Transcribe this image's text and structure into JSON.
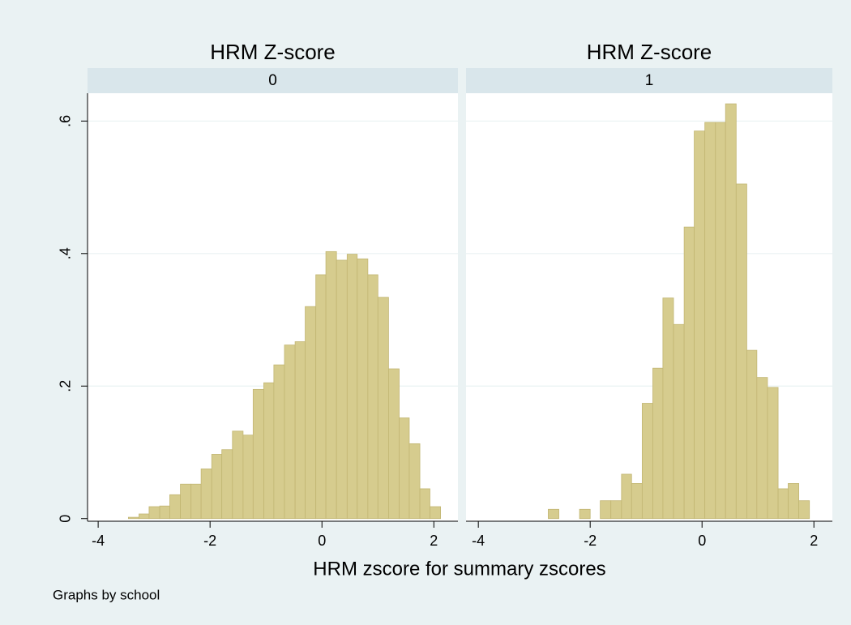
{
  "shared": {
    "xlabel": "HRM zscore for summary zscores",
    "note": "Graphs by school",
    "ylim": [
      -0.004,
      0.642
    ],
    "yticks": [
      0,
      {
        "value": 0.2,
        "label": ".2"
      },
      {
        "value": 0.4,
        "label": ".4"
      },
      {
        "value": 0.6,
        "label": ".6"
      }
    ],
    "grid": true
  },
  "chart_data": [
    {
      "type": "histogram",
      "title": "HRM Z-score",
      "subtitle": "0",
      "color": "#d6cc8e",
      "xlim": [
        -4.19,
        2.43
      ],
      "xticks": [
        -4,
        -2,
        0,
        2
      ],
      "bins": [
        -3.46,
        -3.27,
        -3.09,
        -2.9,
        -2.72,
        -2.53,
        -2.34,
        -2.16,
        -1.97,
        -1.79,
        -1.6,
        -1.41,
        -1.23,
        -1.04,
        -0.86,
        -0.67,
        -0.48,
        -0.3,
        -0.11,
        0.07,
        0.26,
        0.45,
        0.63,
        0.82,
        1.0,
        1.19,
        1.38,
        1.56,
        1.75,
        1.93,
        2.12
      ],
      "values": [
        0.002,
        0.007,
        0.018,
        0.019,
        0.036,
        0.052,
        0.052,
        0.075,
        0.097,
        0.104,
        0.132,
        0.126,
        0.195,
        0.205,
        0.232,
        0.262,
        0.267,
        0.32,
        0.368,
        0.403,
        0.39,
        0.399,
        0.392,
        0.368,
        0.334,
        0.226,
        0.152,
        0.113,
        0.045,
        0.018
      ]
    },
    {
      "type": "histogram",
      "title": "HRM Z-score",
      "subtitle": "1",
      "color": "#d6cc8e",
      "xlim": [
        -4.22,
        2.33
      ],
      "xticks": [
        -4,
        -2,
        0,
        2
      ],
      "bins": [
        -2.75,
        -2.56,
        -2.38,
        -2.19,
        -2.0,
        -1.82,
        -1.63,
        -1.44,
        -1.26,
        -1.07,
        -0.88,
        -0.7,
        -0.51,
        -0.32,
        -0.14,
        0.05,
        0.24,
        0.42,
        0.61,
        0.8,
        0.98,
        1.17,
        1.36,
        1.54,
        1.73,
        1.92
      ],
      "values": [
        0.014,
        0,
        0,
        0.014,
        0,
        0.027,
        0.027,
        0.067,
        0.053,
        0.174,
        0.227,
        0.333,
        0.293,
        0.44,
        0.585,
        0.598,
        0.598,
        0.626,
        0.505,
        0.254,
        0.213,
        0.198,
        0.045,
        0.053,
        0.027
      ]
    }
  ]
}
